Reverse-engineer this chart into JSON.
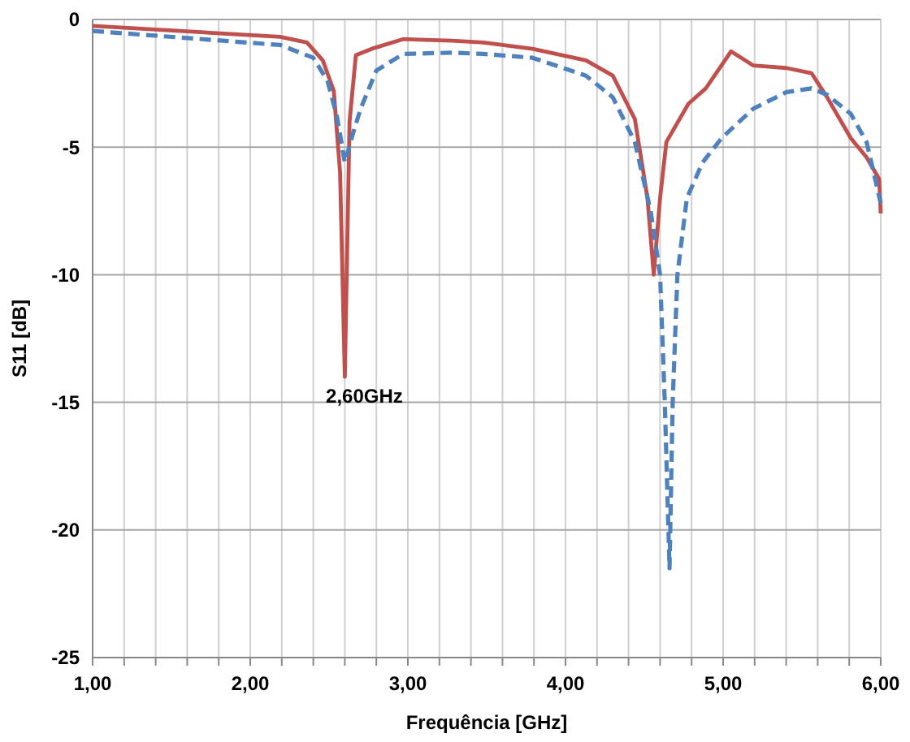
{
  "chart_data": {
    "type": "line",
    "xlabel": "Frequência [GHz]",
    "ylabel": "S11 [dB]",
    "xlim": [
      1,
      6
    ],
    "ylim": [
      -25,
      0
    ],
    "xticks": [
      {
        "value": 1,
        "label": "1,00"
      },
      {
        "value": 1.2,
        "label": null
      },
      {
        "value": 1.4,
        "label": null
      },
      {
        "value": 1.6,
        "label": null
      },
      {
        "value": 1.8,
        "label": null
      },
      {
        "value": 2,
        "label": "2,00"
      },
      {
        "value": 2.2,
        "label": null
      },
      {
        "value": 2.4,
        "label": null
      },
      {
        "value": 2.6,
        "label": null
      },
      {
        "value": 2.8,
        "label": null
      },
      {
        "value": 3,
        "label": "3,00"
      },
      {
        "value": 3.2,
        "label": null
      },
      {
        "value": 3.4,
        "label": null
      },
      {
        "value": 3.6,
        "label": null
      },
      {
        "value": 3.8,
        "label": null
      },
      {
        "value": 4,
        "label": "4,00"
      },
      {
        "value": 4.2,
        "label": null
      },
      {
        "value": 4.4,
        "label": null
      },
      {
        "value": 4.6,
        "label": null
      },
      {
        "value": 4.8,
        "label": null
      },
      {
        "value": 5,
        "label": "5,00"
      },
      {
        "value": 5.2,
        "label": null
      },
      {
        "value": 5.4,
        "label": null
      },
      {
        "value": 5.6,
        "label": null
      },
      {
        "value": 5.8,
        "label": null
      },
      {
        "value": 6,
        "label": "6,00"
      }
    ],
    "yticks": [
      0,
      -5,
      -10,
      -15,
      -20,
      -25
    ],
    "grid": true,
    "marker": "none",
    "annotations": [
      {
        "text": "2,60GHz",
        "x": 2.6,
        "y": -14
      }
    ],
    "series": [
      {
        "color": "#c0504d",
        "line_style": "solid",
        "x": [
          1,
          2.19,
          2.36,
          2.46,
          2.53,
          2.57,
          2.6,
          2.63,
          2.67,
          2.77,
          2.97,
          3.28,
          3.48,
          3.79,
          4.13,
          4.3,
          4.44,
          4.52,
          4.56,
          4.6,
          4.64,
          4.78,
          4.89,
          5.05,
          5.19,
          5.4,
          5.56,
          5.66,
          5.81,
          5.91,
          5.99,
          6
        ],
        "values": [
          -0.25,
          -0.68,
          -0.9,
          -1.6,
          -2.8,
          -6,
          -14,
          -4,
          -1.4,
          -1.15,
          -0.77,
          -0.83,
          -0.9,
          -1.15,
          -1.6,
          -2.2,
          -3.9,
          -7,
          -10,
          -7,
          -4.8,
          -3.3,
          -2.7,
          -1.25,
          -1.8,
          -1.9,
          -2.1,
          -3.05,
          -4.65,
          -5.4,
          -6.25,
          -7.6
        ]
      },
      {
        "color": "#4f81bd",
        "line_style": "dashed",
        "x": [
          1,
          2.19,
          2.4,
          2.49,
          2.55,
          2.6,
          2.65,
          2.7,
          2.8,
          2.97,
          3.28,
          3.48,
          3.79,
          4.13,
          4.3,
          4.44,
          4.54,
          4.6,
          4.63,
          4.66,
          4.68,
          4.71,
          4.77,
          4.87,
          4.99,
          5.19,
          5.4,
          5.56,
          5.66,
          5.81,
          5.91,
          6
        ],
        "values": [
          -0.45,
          -1,
          -1.5,
          -2.4,
          -3.8,
          -5.6,
          -4.5,
          -3.5,
          -2,
          -1.35,
          -1.3,
          -1.35,
          -1.5,
          -2.2,
          -3.05,
          -4.8,
          -7.5,
          -10,
          -15,
          -21.5,
          -15,
          -10,
          -7,
          -5.6,
          -4.65,
          -3.5,
          -2.85,
          -2.7,
          -2.95,
          -3.7,
          -4.8,
          -7.2
        ]
      }
    ]
  }
}
